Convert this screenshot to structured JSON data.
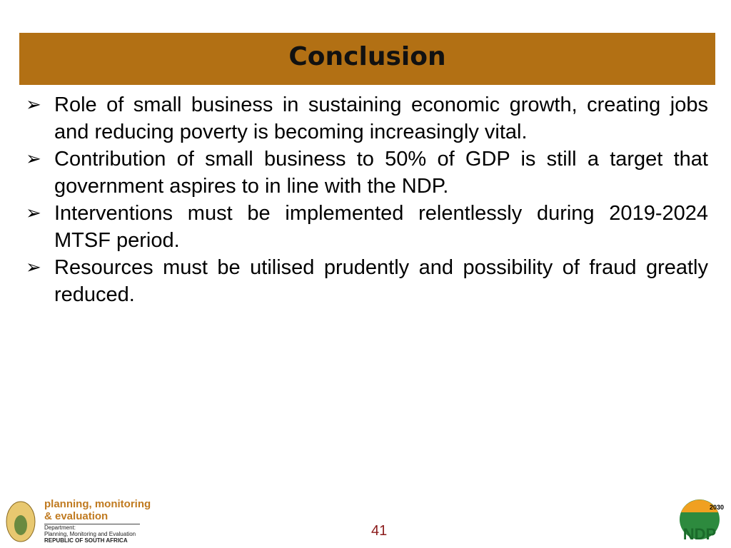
{
  "header": {
    "title": "Conclusion"
  },
  "bullets": [
    "Role of small business in sustaining economic growth, creating jobs and reducing poverty is becoming increasingly vital.",
    "Contribution of small business to 50% of GDP is still a target that government aspires to in line with the NDP.",
    "Interventions must be implemented relentlessly during 2019-2024 MTSF period.",
    "Resources must be utilised prudently and possibility of fraud greatly reduced."
  ],
  "footer": {
    "logo_line1": "planning, monitoring",
    "logo_line2": "& evaluation",
    "dept1": "Department:",
    "dept2": "Planning, Monitoring and Evaluation",
    "dept3": "REPUBLIC OF SOUTH AFRICA",
    "page_number": "41",
    "ndp_year": "2030",
    "ndp_text": "NDP"
  }
}
